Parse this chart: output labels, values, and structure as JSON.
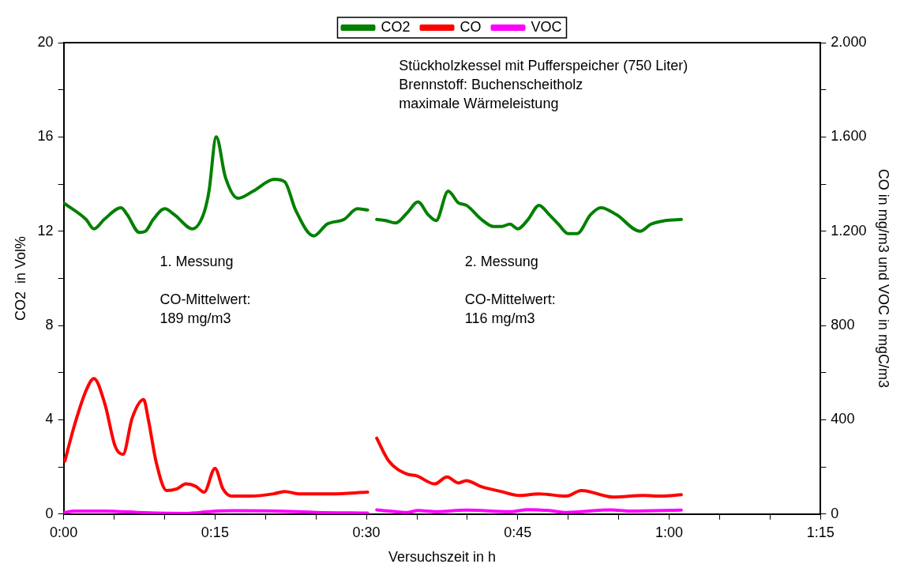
{
  "chart_data": {
    "type": "line",
    "xlabel": "Versuchszeit in h",
    "ylabel": "CO2  in Vol%",
    "y2label": "CO in mg/m3 und VOC in mgC/m3",
    "annotations": [
      "Stückholzkessel mit Pufferspeicher (750 Liter)\nBrennstoff: Buchenscheitholz\nmaximale Wärmeleistung",
      "1. Messung\n\nCO-Mittelwert:\n189 mg/m3",
      "2. Messung\n\nCO-Mittelwert:\n116 mg/m3"
    ],
    "xlim": [
      0,
      1.25
    ],
    "xticks": [
      {
        "value": 0,
        "label": "0:00"
      },
      {
        "value": 0.0833,
        "label": null
      },
      {
        "value": 0.1667,
        "label": null
      },
      {
        "value": 0.25,
        "label": "0:15"
      },
      {
        "value": 0.3333,
        "label": null
      },
      {
        "value": 0.4167,
        "label": null
      },
      {
        "value": 0.5,
        "label": "0:30"
      },
      {
        "value": 0.5833,
        "label": null
      },
      {
        "value": 0.6667,
        "label": null
      },
      {
        "value": 0.75,
        "label": "0:45"
      },
      {
        "value": 0.8333,
        "label": null
      },
      {
        "value": 0.9167,
        "label": null
      },
      {
        "value": 1,
        "label": "1:00"
      },
      {
        "value": 1.0833,
        "label": null
      },
      {
        "value": 1.1667,
        "label": null
      },
      {
        "value": 1.25,
        "label": "1:15"
      }
    ],
    "ylim": [
      0,
      20
    ],
    "yticks": [
      0,
      {
        "value": 2,
        "label": null
      },
      4,
      {
        "value": 6,
        "label": null
      },
      8,
      {
        "value": 10,
        "label": null
      },
      12,
      {
        "value": 14,
        "label": null
      },
      16,
      {
        "value": 18,
        "label": null
      },
      20
    ],
    "y2lim": [
      0,
      2000
    ],
    "y2ticks": [
      0,
      {
        "value": 200,
        "label": null
      },
      400,
      {
        "value": 600,
        "label": null
      },
      800,
      {
        "value": 1000,
        "label": null
      },
      {
        "value": 1200,
        "label": "1.200"
      },
      {
        "value": 1400,
        "label": null
      },
      {
        "value": 1600,
        "label": "1.600"
      },
      {
        "value": 1800,
        "label": null
      },
      {
        "value": 2000,
        "label": "2.000"
      }
    ],
    "grid": false,
    "legend": "top",
    "marker": "none",
    "line_style": "solid",
    "series": [
      {
        "name": "CO2",
        "color": "#008000",
        "x": [
          0,
          0.037,
          0.05,
          0.067,
          0.095,
          0.105,
          0.125,
          0.135,
          0.148,
          0.167,
          0.183,
          0.213,
          0.232,
          0.24,
          0.252,
          0.267,
          0.288,
          0.313,
          0.348,
          0.365,
          0.383,
          0.413,
          0.435,
          0.463,
          0.485,
          0.502,
          0.51,
          0.517,
          0.532,
          0.548,
          0.568,
          0.585,
          0.602,
          0.615,
          0.635,
          0.652,
          0.665,
          0.69,
          0.71,
          0.723,
          0.737,
          0.75,
          0.767,
          0.785,
          0.802,
          0.817,
          0.833,
          0.848,
          0.87,
          0.887,
          0.913,
          0.952,
          0.97,
          0.993,
          1.02
        ],
        "values": [
          13.2,
          12.5,
          12.1,
          12.5,
          13.0,
          12.7,
          11.95,
          12.0,
          12.5,
          12.95,
          12.7,
          12.1,
          12.8,
          13.7,
          16.0,
          14.3,
          13.4,
          13.7,
          14.2,
          14.1,
          12.9,
          11.8,
          12.3,
          12.5,
          12.95,
          12.9,
          null,
          12.5,
          12.45,
          12.35,
          12.8,
          13.25,
          12.7,
          12.45,
          13.7,
          13.2,
          13.1,
          12.5,
          12.2,
          12.2,
          12.3,
          12.1,
          12.5,
          13.1,
          12.7,
          12.3,
          11.9,
          11.9,
          12.7,
          13.0,
          12.7,
          12.0,
          12.3,
          12.45,
          12.5
        ]
      },
      {
        "name": "CO",
        "color": "#ff0000",
        "axis": "y2",
        "x": [
          0.002,
          0.018,
          0.037,
          0.05,
          0.068,
          0.085,
          0.098,
          0.113,
          0.132,
          0.14,
          0.153,
          0.17,
          0.187,
          0.202,
          0.218,
          0.232,
          0.25,
          0.263,
          0.277,
          0.308,
          0.347,
          0.365,
          0.388,
          0.442,
          0.502,
          0.51,
          0.517,
          0.537,
          0.568,
          0.582,
          0.613,
          0.633,
          0.652,
          0.665,
          0.688,
          0.722,
          0.753,
          0.785,
          0.83,
          0.855,
          0.908,
          0.957,
          0.988,
          1.02
        ],
        "values": [
          225,
          378,
          524,
          575,
          468,
          288,
          253,
          406,
          486,
          399,
          218,
          100,
          107,
          128,
          118,
          93,
          194,
          107,
          76,
          76,
          86,
          96,
          86,
          86,
          93,
          null,
          322,
          225,
          169,
          163,
          128,
          158,
          132,
          142,
          118,
          96,
          79,
          86,
          76,
          100,
          72,
          79,
          76,
          82
        ]
      },
      {
        "name": "VOC",
        "color": "#ff00ff",
        "axis": "y2",
        "x": [
          0,
          0.018,
          0.067,
          0.133,
          0.2,
          0.253,
          0.283,
          0.35,
          0.417,
          0.502,
          0.51,
          0.517,
          0.568,
          0.585,
          0.615,
          0.665,
          0.737,
          0.767,
          0.802,
          0.83,
          0.903,
          0.935,
          1.02
        ],
        "values": [
          6,
          13,
          13,
          6,
          3,
          13,
          14,
          13,
          7,
          4,
          null,
          18,
          7,
          15,
          10,
          17,
          10,
          19,
          15,
          7,
          18,
          13,
          17
        ]
      }
    ]
  }
}
